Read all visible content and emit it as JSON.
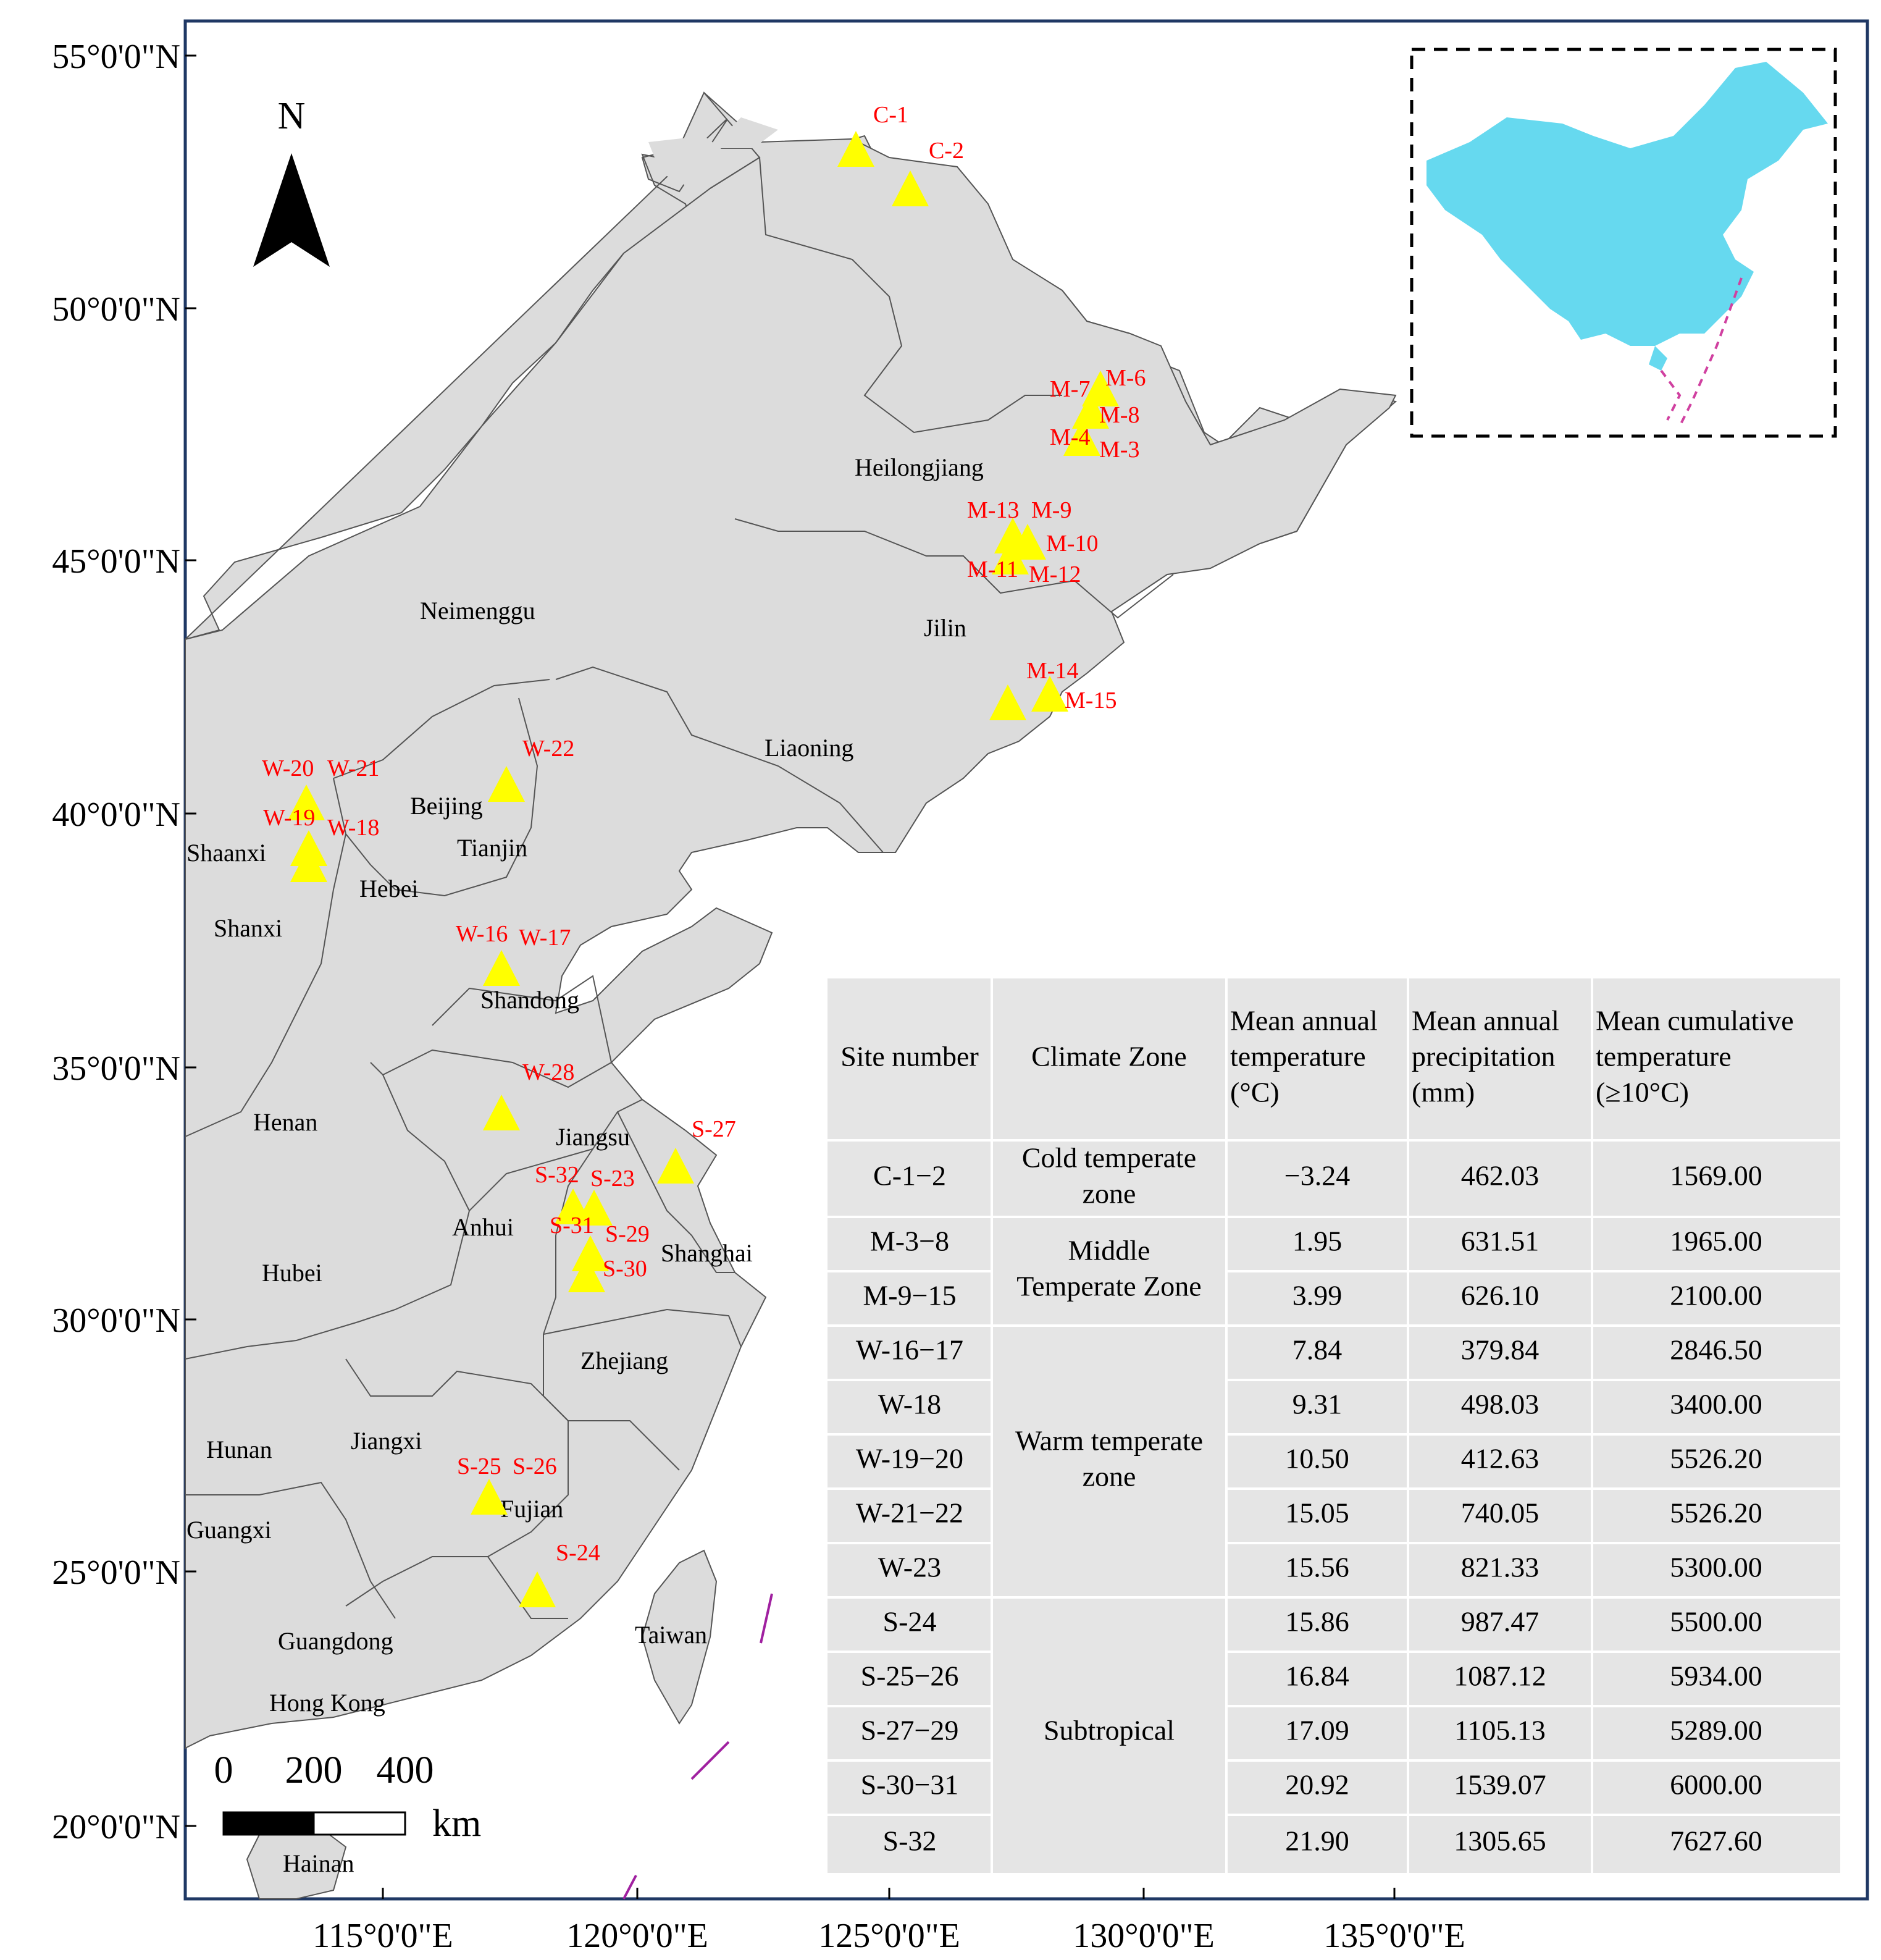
{
  "latitude_labels": [
    "55°0'0\"N",
    "50°0'0\"N",
    "45°0'0\"N",
    "40°0'0\"N",
    "35°0'0\"N",
    "30°0'0\"N",
    "25°0'0\"N",
    "20°0'0\"N"
  ],
  "longitude_labels": [
    "115°0'0\"E",
    "120°0'0\"E",
    "125°0'0\"E",
    "130°0'0\"E",
    "135°0'0\"E"
  ],
  "north_arrow": {
    "label": "N",
    "icon": "north-arrow-icon"
  },
  "scale_bar": {
    "ticks": [
      "0",
      "200",
      "400"
    ],
    "unit": "km"
  },
  "province_labels": [
    "Heilongjiang",
    "Neimenggu",
    "Jilin",
    "Liaoning",
    "Beijing",
    "Tianjin",
    "Hebei",
    "Shaanxi",
    "Shanxi",
    "Shandong",
    "Henan",
    "Jiangsu",
    "Anhui",
    "Shanghai",
    "Hubei",
    "Zhejiang",
    "Hunan",
    "Jiangxi",
    "Fujian",
    "Guangxi",
    "Guangdong",
    "Hong Kong",
    "Taiwan",
    "Hainan"
  ],
  "site_labels": [
    "C-1",
    "C-2",
    "M-6",
    "M-7",
    "M-8",
    "M-4",
    "M-3",
    "M-13",
    "M-9",
    "M-10",
    "M-11",
    "M-12",
    "M-14",
    "M-15",
    "W-22",
    "W-20",
    "W-21",
    "W-19",
    "W-18",
    "W-16",
    "W-17",
    "W-28",
    "S-27",
    "S-32",
    "S-23",
    "S-31",
    "S-29",
    "S-30",
    "S-25",
    "S-26",
    "S-24"
  ],
  "colors": {
    "land": "#dcdcdc",
    "site_marker": "#ffff00",
    "site_label": "#ff0000",
    "inset_china": "#66d9ef",
    "table_bg": "#e5e5e5",
    "frame": "#1f3864"
  },
  "table": {
    "headers": [
      "Site number",
      "Climate  Zone",
      "Mean annual temperature (°C)",
      "Mean annual precipitation (mm)",
      "Mean cumulative temperature (≥10°C)"
    ],
    "rows": [
      [
        "C-1−2",
        "Cold temperate zone",
        "−3.24",
        "462.03",
        "1569.00"
      ],
      [
        "M-3−8",
        "Middle Temperate Zone",
        "1.95",
        "631.51",
        "1965.00"
      ],
      [
        "M-9−15",
        "",
        "3.99",
        "626.10",
        "2100.00"
      ],
      [
        "W-16−17",
        "Warm temperate zone",
        "7.84",
        "379.84",
        "2846.50"
      ],
      [
        "W-18",
        "",
        "9.31",
        "498.03",
        "3400.00"
      ],
      [
        "W-19−20",
        "",
        "10.50",
        "412.63",
        "5526.20"
      ],
      [
        "W-21−22",
        "",
        "15.05",
        "740.05",
        "5526.20"
      ],
      [
        "W-23",
        "",
        "15.56",
        "821.33",
        "5300.00"
      ],
      [
        "S-24",
        "Subtropical",
        "15.86",
        "987.47",
        "5500.00"
      ],
      [
        "S-25−26",
        "",
        "16.84",
        "1087.12",
        "5934.00"
      ],
      [
        "S-27−29",
        "",
        "17.09",
        "1105.13",
        "5289.00"
      ],
      [
        "S-30−31",
        "",
        "20.92",
        "1539.07",
        "6000.00"
      ],
      [
        "S-32",
        "",
        "21.90",
        "1305.65",
        "7627.60"
      ]
    ]
  }
}
